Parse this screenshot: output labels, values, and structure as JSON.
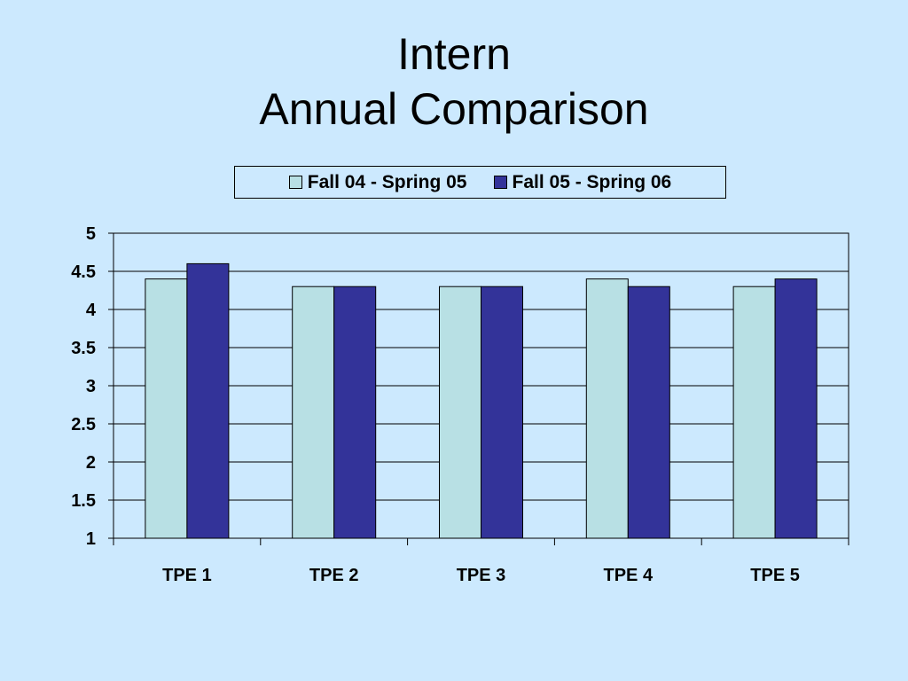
{
  "title": {
    "line1": "Intern",
    "line2": "Annual Comparison"
  },
  "chart_data": {
    "type": "bar",
    "title": "Intern Annual Comparison",
    "xlabel": "",
    "ylabel": "",
    "categories": [
      "TPE 1",
      "TPE 2",
      "TPE 3",
      "TPE 4",
      "TPE 5"
    ],
    "series": [
      {
        "name": "Fall 04 - Spring 05",
        "values": [
          4.4,
          4.3,
          4.3,
          4.4,
          4.3
        ],
        "color": "#b8e0e4"
      },
      {
        "name": "Fall 05 - Spring 06",
        "values": [
          4.6,
          4.3,
          4.3,
          4.3,
          4.4
        ],
        "color": "#333399"
      }
    ],
    "ylim": [
      1,
      5
    ],
    "yticks": [
      "1",
      "1.5",
      "2",
      "2.5",
      "3",
      "3.5",
      "4",
      "4.5",
      "5"
    ],
    "grid": true,
    "legend": "top"
  }
}
